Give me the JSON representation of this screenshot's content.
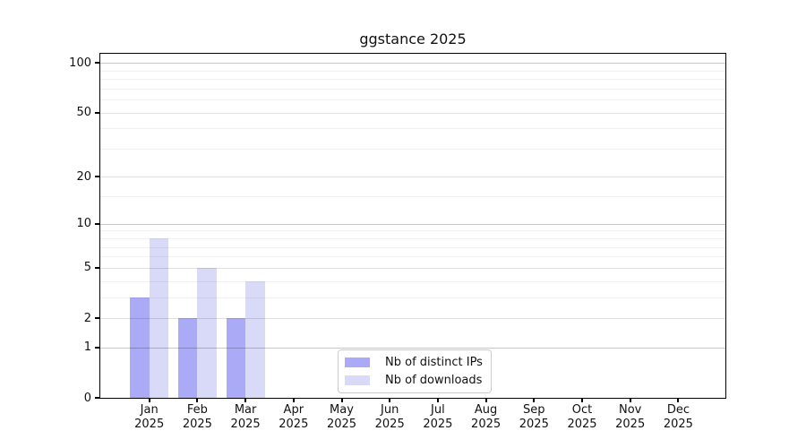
{
  "chart_data": {
    "type": "bar",
    "title": "ggstance 2025",
    "categories": [
      {
        "month": "Jan",
        "year": "2025"
      },
      {
        "month": "Feb",
        "year": "2025"
      },
      {
        "month": "Mar",
        "year": "2025"
      },
      {
        "month": "Apr",
        "year": "2025"
      },
      {
        "month": "May",
        "year": "2025"
      },
      {
        "month": "Jun",
        "year": "2025"
      },
      {
        "month": "Jul",
        "year": "2025"
      },
      {
        "month": "Aug",
        "year": "2025"
      },
      {
        "month": "Sep",
        "year": "2025"
      },
      {
        "month": "Oct",
        "year": "2025"
      },
      {
        "month": "Nov",
        "year": "2025"
      },
      {
        "month": "Dec",
        "year": "2025"
      }
    ],
    "series": [
      {
        "name": "Nb of distinct IPs",
        "color": "#aaaaf6",
        "values": [
          3,
          2,
          2,
          0,
          0,
          0,
          0,
          0,
          0,
          0,
          0,
          0
        ]
      },
      {
        "name": "Nb of downloads",
        "color": "#d9d9f8",
        "values": [
          8,
          5,
          4,
          0,
          0,
          0,
          0,
          0,
          0,
          0,
          0,
          0
        ]
      }
    ],
    "y_scale": "log1p",
    "ylim": [
      0,
      114
    ],
    "y_ticks": [
      {
        "label": "0",
        "value": 0
      },
      {
        "label": "1",
        "value": 1
      },
      {
        "label": "2",
        "value": 2
      },
      {
        "label": "5",
        "value": 5
      },
      {
        "label": "10",
        "value": 10
      },
      {
        "label": "20",
        "value": 20
      },
      {
        "label": "50",
        "value": 50
      },
      {
        "label": "100",
        "value": 100
      }
    ],
    "gridlines": {
      "decade": [
        1,
        10,
        100
      ],
      "labeled": [
        2,
        5,
        20,
        50
      ],
      "minor": [
        3,
        4,
        6,
        7,
        8,
        9,
        15,
        30,
        40,
        60,
        70,
        80,
        90
      ]
    },
    "legend_position": "lower center inside",
    "grid_on": true
  },
  "colors": {
    "bar_distinct_ips": "#aaaaf6",
    "bar_downloads": "#d9d9f8",
    "grid_decade": "rgba(0,0,0,0.22)",
    "grid_labeled": "rgba(0,0,0,0.12)",
    "grid_minor": "rgba(0,0,0,0.055)",
    "axis": "#000000",
    "legend_border": "#cccccc",
    "background": "#ffffff"
  }
}
